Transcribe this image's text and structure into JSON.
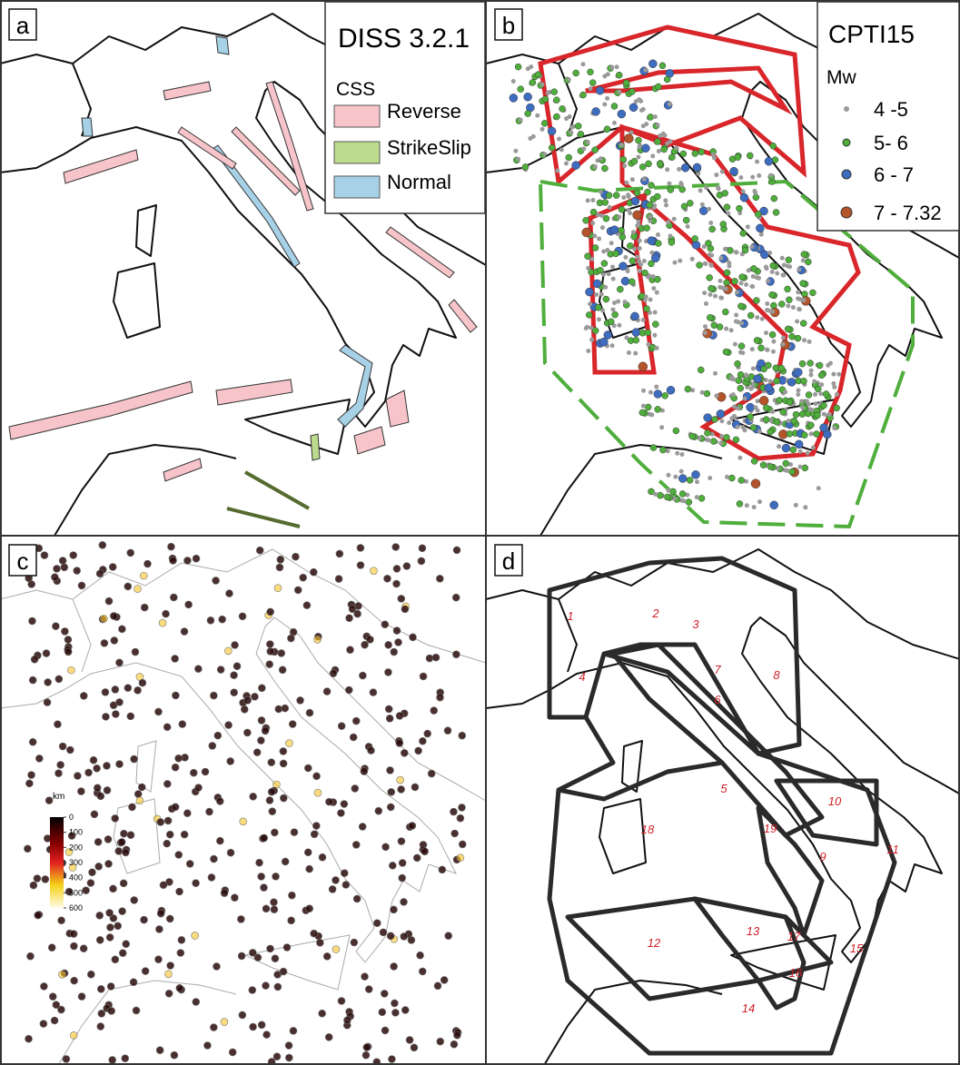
{
  "panels": [
    {
      "label": "a",
      "legend": {
        "title": "DISS 3.2.1",
        "subtitle": "CSS",
        "items": [
          {
            "name": "Reverse",
            "color": "#f7c4c9"
          },
          {
            "name": "StrikeSlip",
            "color": "#bcdb8d"
          },
          {
            "name": "Normal",
            "color": "#a7d1e6"
          }
        ]
      }
    },
    {
      "label": "b",
      "legend": {
        "title": "CPTI15",
        "subtitle": "Mw",
        "items": [
          {
            "name": "4 -5",
            "color": "#9a9a9a"
          },
          {
            "name": "5- 6",
            "color": "#4fae3c"
          },
          {
            "name": "6 - 7",
            "color": "#3e6cbf"
          },
          {
            "name": "7 - 7.32",
            "color": "#b4542b"
          }
        ]
      }
    },
    {
      "label": "c",
      "colorbar": {
        "unit": "km",
        "ticks": [
          0,
          100,
          200,
          300,
          400,
          500,
          600
        ]
      }
    },
    {
      "label": "d",
      "zones": [
        "1",
        "2",
        "3",
        "4",
        "5",
        "6",
        "7",
        "8",
        "9",
        "10",
        "11",
        "12",
        "13",
        "14",
        "15",
        "16",
        "17",
        "18",
        "19"
      ]
    }
  ]
}
